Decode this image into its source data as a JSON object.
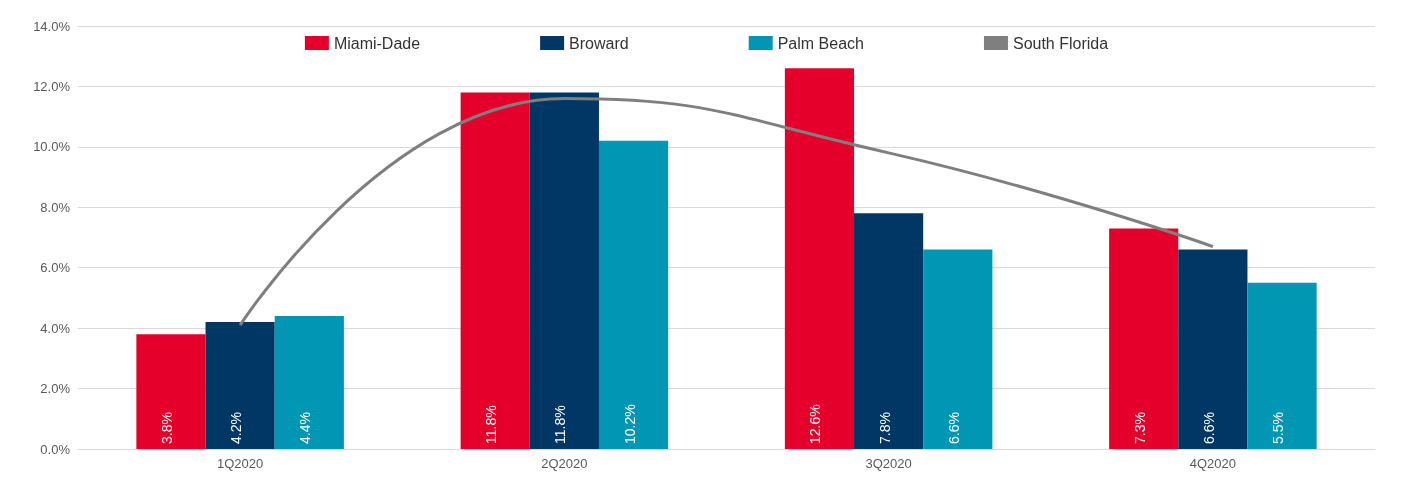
{
  "chart_data": {
    "type": "bar",
    "categories": [
      "1Q2020",
      "2Q2020",
      "3Q2020",
      "4Q2020"
    ],
    "series": [
      {
        "name": "Miami-Dade",
        "color": "#e4002b",
        "values": [
          3.8,
          11.8,
          12.6,
          7.3
        ],
        "value_labels": [
          "3.8%",
          "11.8%",
          "12.6%",
          "7.3%"
        ]
      },
      {
        "name": "Broward",
        "color": "#003764",
        "values": [
          4.2,
          11.8,
          7.8,
          6.6
        ],
        "value_labels": [
          "4.2%",
          "11.8%",
          "7.8%",
          "6.6%"
        ]
      },
      {
        "name": "Palm Beach",
        "color": "#0096b4",
        "values": [
          4.4,
          10.2,
          6.6,
          5.5
        ],
        "value_labels": [
          "4.4%",
          "10.2%",
          "6.6%",
          "5.5%"
        ]
      },
      {
        "name": "South Florida",
        "type": "line",
        "color": "#7f7f7f",
        "values": [
          4.1,
          11.6,
          9.8,
          6.7
        ]
      }
    ],
    "ylim": [
      0,
      14
    ],
    "yticks": [
      {
        "value": 0,
        "label": "0.0%"
      },
      {
        "value": 2,
        "label": "2.0%"
      },
      {
        "value": 4,
        "label": "4.0%"
      },
      {
        "value": 6,
        "label": "6.0%"
      },
      {
        "value": 8,
        "label": "8.0%"
      },
      {
        "value": 10,
        "label": "10.0%"
      },
      {
        "value": 12,
        "label": "12.0%"
      },
      {
        "value": 14,
        "label": "14.0%"
      }
    ],
    "grid": "y",
    "legend": "top",
    "marker": "none"
  }
}
